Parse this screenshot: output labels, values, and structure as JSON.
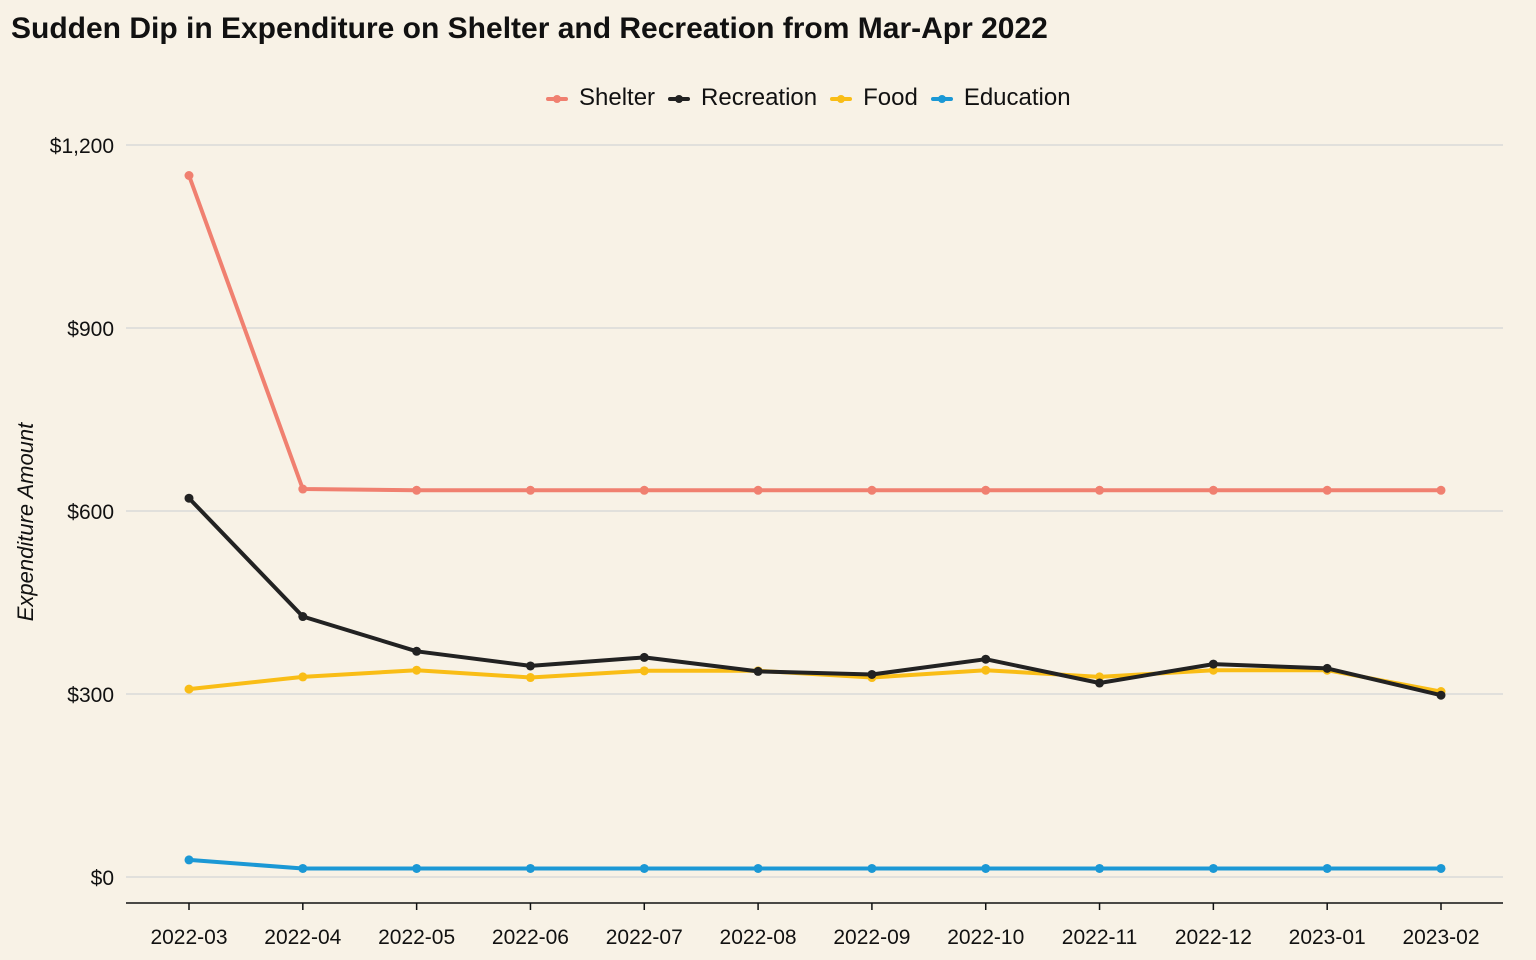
{
  "chart_data": {
    "type": "line",
    "title": "Sudden Dip in Expenditure on Shelter and Recreation from Mar-Apr 2022",
    "xlabel": "",
    "ylabel": "Expenditure Amount",
    "categories": [
      "2022-03",
      "2022-04",
      "2022-05",
      "2022-06",
      "2022-07",
      "2022-08",
      "2022-09",
      "2022-10",
      "2022-11",
      "2022-12",
      "2023-01",
      "2023-02"
    ],
    "ylim": [
      0,
      1200
    ],
    "yticks": [
      0,
      300,
      600,
      900,
      1200
    ],
    "ytick_labels": [
      "$0",
      "$300",
      "$600",
      "$900",
      "$1,200"
    ],
    "grid": "horizontal",
    "legend_position": "top",
    "series": [
      {
        "name": "Shelter",
        "color": "#f08070",
        "values": [
          1150,
          636,
          634,
          634,
          634,
          634,
          634,
          634,
          634,
          634,
          634,
          634
        ]
      },
      {
        "name": "Recreation",
        "color": "#222222",
        "values": [
          621,
          427,
          370,
          346,
          360,
          337,
          332,
          357,
          318,
          349,
          342,
          298
        ]
      },
      {
        "name": "Food",
        "color": "#f9bd16",
        "values": [
          308,
          328,
          339,
          327,
          338,
          338,
          327,
          339,
          328,
          339,
          339,
          304
        ]
      },
      {
        "name": "Education",
        "color": "#1b98d5",
        "values": [
          28,
          14,
          14,
          14,
          14,
          14,
          14,
          14,
          14,
          14,
          14,
          14
        ]
      }
    ]
  }
}
